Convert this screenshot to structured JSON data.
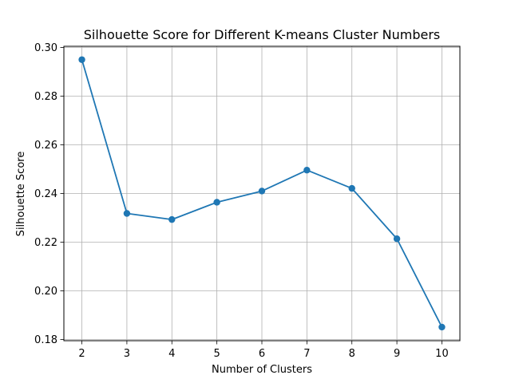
{
  "chart_data": {
    "type": "line",
    "title": "Silhouette Score for Different K-means Cluster Numbers",
    "xlabel": "Number of Clusters",
    "ylabel": "Silhouette Score",
    "x": [
      2,
      3,
      4,
      5,
      6,
      7,
      8,
      9,
      10
    ],
    "series": [
      {
        "values": [
          0.295,
          0.2318,
          0.2293,
          0.2364,
          0.241,
          0.2496,
          0.2421,
          0.2214,
          0.1851
        ],
        "color": "#1f77b4",
        "marker": "circle"
      }
    ],
    "xticks": [
      "2",
      "3",
      "4",
      "5",
      "6",
      "7",
      "8",
      "9",
      "10"
    ],
    "yticks": [
      "0.18",
      "0.20",
      "0.22",
      "0.24",
      "0.26",
      "0.28",
      "0.30"
    ],
    "ytick_values": [
      0.18,
      0.2,
      0.22,
      0.24,
      0.26,
      0.28,
      0.3
    ],
    "xlim": [
      1.6,
      10.4
    ],
    "ylim": [
      0.1795,
      0.3005
    ],
    "grid": true
  }
}
